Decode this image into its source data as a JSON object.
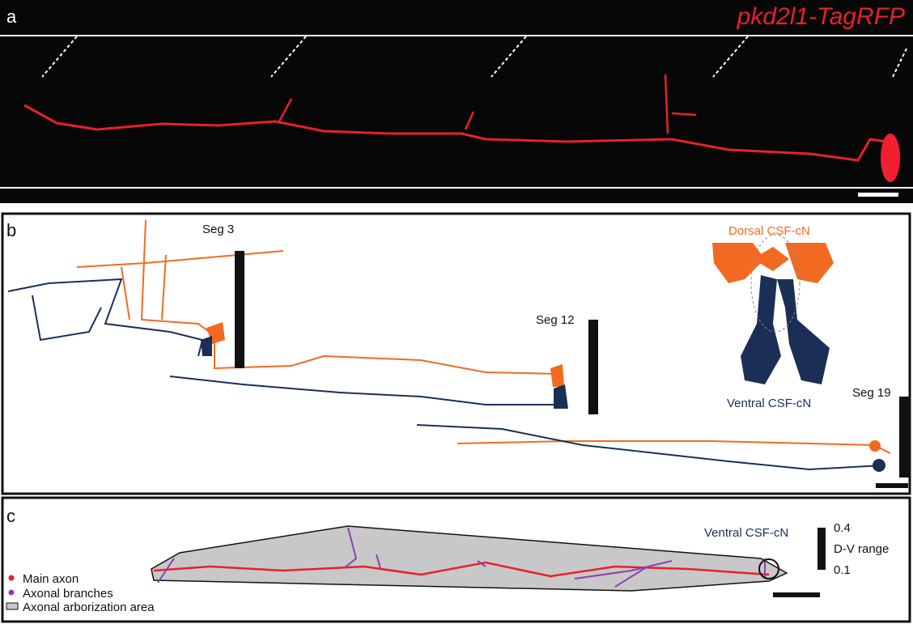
{
  "panel_a": {
    "label": "a",
    "title": "pkd2l1-TagRFP"
  },
  "panel_b": {
    "label": "b",
    "segments": [
      "Seg 3",
      "Seg 12",
      "Seg 19"
    ],
    "dorsal": "Dorsal CSF-cN",
    "ventral": "Ventral CSF-cN"
  },
  "panel_c": {
    "label": "c",
    "cell": "Ventral CSF-cN",
    "range_top": "0.4",
    "range_label": "D-V range",
    "range_bottom": "0.1",
    "legend": [
      "Main axon",
      "Axonal branches",
      "Axonal arborization area"
    ]
  }
}
